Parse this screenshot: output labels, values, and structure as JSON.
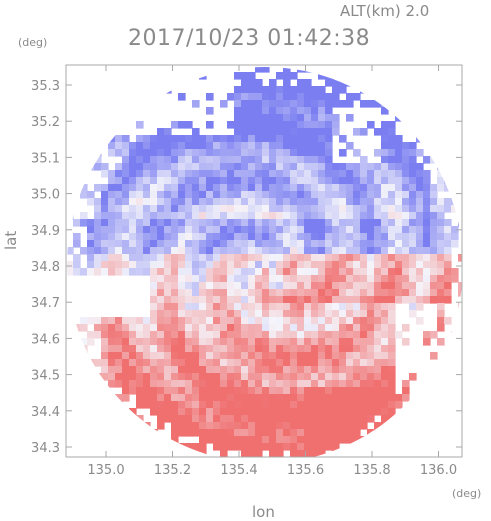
{
  "header": {
    "altitude": "ALT(km) 2.0",
    "timestamp": "2017/10/23 01:42:38"
  },
  "axes": {
    "y_unit": "(deg)",
    "x_unit": "(deg)",
    "y_label": "lat",
    "x_label": "lon",
    "y_ticks": [
      "35.3",
      "35.2",
      "35.1",
      "35.0",
      "34.9",
      "34.8",
      "34.7",
      "34.6",
      "34.5",
      "34.4",
      "34.3"
    ],
    "x_ticks": [
      "135.0",
      "135.2",
      "135.4",
      "135.6",
      "135.8",
      "136.0"
    ]
  },
  "colors": {
    "frame": "#a8a8a8",
    "positive": "#f07070",
    "negative": "#7a7ef0",
    "neutral": "#f4f4fa"
  }
}
